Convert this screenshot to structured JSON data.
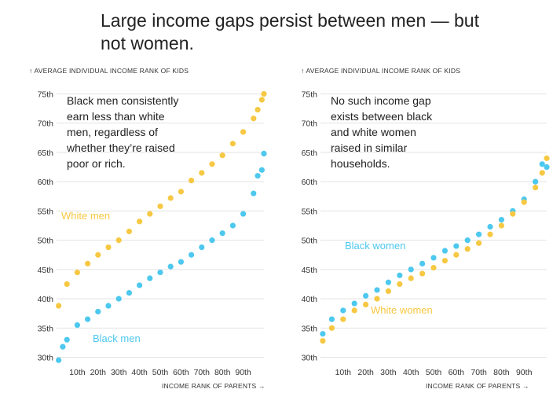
{
  "headline": "Large income gaps persist between men — but not women.",
  "colors": {
    "black": "#4dc8ee",
    "white": "#f7c843",
    "grid": "#e3e3e3",
    "text": "#333333"
  },
  "chart_data": [
    {
      "type": "scatter",
      "ylabel": "↑ AVERAGE INDIVIDUAL INCOME RANK OF KIDS",
      "xlabel": "INCOME RANK OF PARENTS →",
      "xlim": [
        0,
        100
      ],
      "ylim": [
        29,
        76
      ],
      "x_ticks": [
        "10th",
        "20th",
        "30th",
        "40th",
        "50th",
        "60th",
        "70th",
        "80th",
        "90th"
      ],
      "y_ticks": [
        "30th",
        "35th",
        "40th",
        "45th",
        "50th",
        "55th",
        "60th",
        "65th",
        "70th",
        "75th"
      ],
      "grid": true,
      "annotation": [
        "Black men consistently",
        "earn less than white",
        "men, regardless of",
        "whether they’re raised",
        "poor or rich."
      ],
      "series": [
        {
          "name": "White men",
          "color": "#f7c843",
          "x": [
            1,
            5,
            10,
            15,
            20,
            25,
            30,
            35,
            40,
            45,
            50,
            55,
            60,
            65,
            70,
            75,
            80,
            85,
            90,
            95,
            97,
            99,
            100
          ],
          "y": [
            38.8,
            42.5,
            44.5,
            46,
            47.5,
            48.8,
            50,
            51.5,
            53.2,
            54.5,
            55.8,
            57.2,
            58.3,
            60.2,
            61.5,
            63,
            64.5,
            66.5,
            68.5,
            70.8,
            72.3,
            74,
            75
          ]
        },
        {
          "name": "Black men",
          "color": "#4dc8ee",
          "x": [
            1,
            3,
            5,
            10,
            15,
            20,
            25,
            30,
            35,
            40,
            45,
            50,
            55,
            60,
            65,
            70,
            75,
            80,
            85,
            90,
            95,
            97,
            99,
            100
          ],
          "y": [
            29.5,
            31.8,
            33,
            35.5,
            36.5,
            37.8,
            38.8,
            40,
            41,
            42.3,
            43.5,
            44.5,
            45.5,
            46.3,
            47.5,
            48.8,
            50,
            51.2,
            52.5,
            54.5,
            58,
            61,
            62,
            64.8
          ]
        }
      ]
    },
    {
      "type": "scatter",
      "ylabel": "↑ AVERAGE INDIVIDUAL INCOME RANK OF KIDS",
      "xlabel": "INCOME RANK OF PARENTS →",
      "xlim": [
        0,
        100
      ],
      "ylim": [
        29,
        76
      ],
      "x_ticks": [
        "10th",
        "20th",
        "30th",
        "40th",
        "50th",
        "60th",
        "70th",
        "80th",
        "90th"
      ],
      "y_ticks": [
        "30th",
        "35th",
        "40th",
        "45th",
        "50th",
        "55th",
        "60th",
        "65th",
        "70th",
        "75th"
      ],
      "grid": true,
      "annotation": [
        "No such income gap",
        "exists between black",
        "and white women",
        "raised in similar",
        "households."
      ],
      "series": [
        {
          "name": "Black women",
          "color": "#4dc8ee",
          "x": [
            1,
            5,
            10,
            15,
            20,
            25,
            30,
            35,
            40,
            45,
            50,
            55,
            60,
            65,
            70,
            75,
            80,
            85,
            90,
            95,
            98,
            100
          ],
          "y": [
            34,
            36.5,
            38,
            39.2,
            40.5,
            41.5,
            42.8,
            44,
            45,
            46,
            47,
            48.2,
            49,
            50,
            51,
            52.3,
            53.5,
            55,
            57,
            60,
            63,
            62.5
          ]
        },
        {
          "name": "White women",
          "color": "#f7c843",
          "x": [
            1,
            5,
            10,
            15,
            20,
            25,
            30,
            35,
            40,
            45,
            50,
            55,
            60,
            65,
            70,
            75,
            80,
            85,
            90,
            95,
            98,
            100
          ],
          "y": [
            32.8,
            35,
            36.5,
            38,
            39,
            40,
            41.3,
            42.5,
            43.5,
            44.3,
            45.3,
            46.5,
            47.5,
            48.5,
            49.5,
            51,
            52.5,
            54.5,
            56.5,
            59,
            61.5,
            64
          ]
        }
      ]
    }
  ]
}
